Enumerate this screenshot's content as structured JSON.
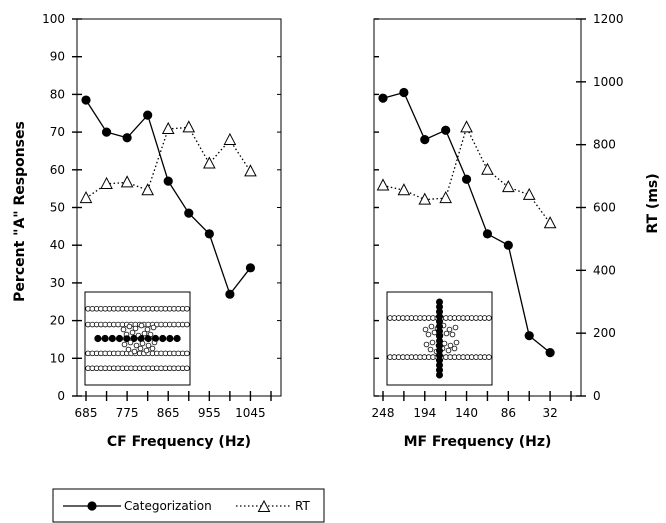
{
  "chart_data": [
    {
      "type": "line",
      "xlabel": "CF Frequency (Hz)",
      "ylabel": "Percent \"A\" Responses",
      "x_tick_labels": [
        "685",
        "775",
        "865",
        "955",
        "1045"
      ],
      "y_ticks": [
        0,
        10,
        20,
        30,
        40,
        50,
        60,
        70,
        80,
        90,
        100
      ],
      "ylim": [
        0,
        100
      ],
      "rt_lim": [
        0,
        1200
      ],
      "x_positions": 10,
      "series": [
        {
          "name": "Categorization",
          "axis": "left",
          "marker": "filled-circle",
          "line": "solid",
          "values": [
            78.5,
            70,
            68.5,
            74.5,
            57,
            48.5,
            43,
            27,
            34
          ]
        },
        {
          "name": "RT",
          "axis": "right",
          "marker": "open-triangle",
          "line": "dotted",
          "values": [
            630,
            675,
            680,
            655,
            850,
            855,
            740,
            815,
            715
          ]
        }
      ],
      "inset": {
        "rows": [
          {
            "y": 0.18,
            "open": 24,
            "filled": 0
          },
          {
            "y": 0.35,
            "open": 24,
            "filled": 0
          },
          {
            "y": 0.5,
            "open": 0,
            "filled": 12
          },
          {
            "y": 0.66,
            "open": 24,
            "filled": 0
          },
          {
            "y": 0.82,
            "open": 24,
            "filled": 0
          }
        ]
      }
    },
    {
      "type": "line",
      "xlabel": "MF Frequency (Hz)",
      "ylabel": "RT (ms)",
      "x_tick_labels": [
        "248",
        "194",
        "140",
        "86",
        "32"
      ],
      "y_ticks": [
        0,
        200,
        400,
        600,
        800,
        1000,
        1200
      ],
      "ylim": [
        0,
        100
      ],
      "rt_lim": [
        0,
        1200
      ],
      "x_positions": 10,
      "series": [
        {
          "name": "Categorization",
          "axis": "left",
          "marker": "filled-circle",
          "line": "solid",
          "values": [
            79,
            80.5,
            68,
            70.5,
            57.5,
            43,
            40,
            16,
            11.5
          ]
        },
        {
          "name": "RT",
          "axis": "right",
          "marker": "open-triangle",
          "line": "dotted",
          "values": [
            670,
            655,
            625,
            630,
            855,
            720,
            665,
            640,
            550
          ]
        }
      ],
      "inset": {
        "rows": [
          {
            "y": 0.28,
            "open": 24,
            "filled": 0
          },
          {
            "y": 0.7,
            "open": 24,
            "filled": 0
          }
        ],
        "column": {
          "x": 0.5,
          "filled": 16
        }
      }
    }
  ],
  "legend": {
    "items": [
      {
        "label": "Categorization",
        "style": "solid-circle"
      },
      {
        "label": "RT",
        "style": "dotted-triangle"
      }
    ]
  }
}
